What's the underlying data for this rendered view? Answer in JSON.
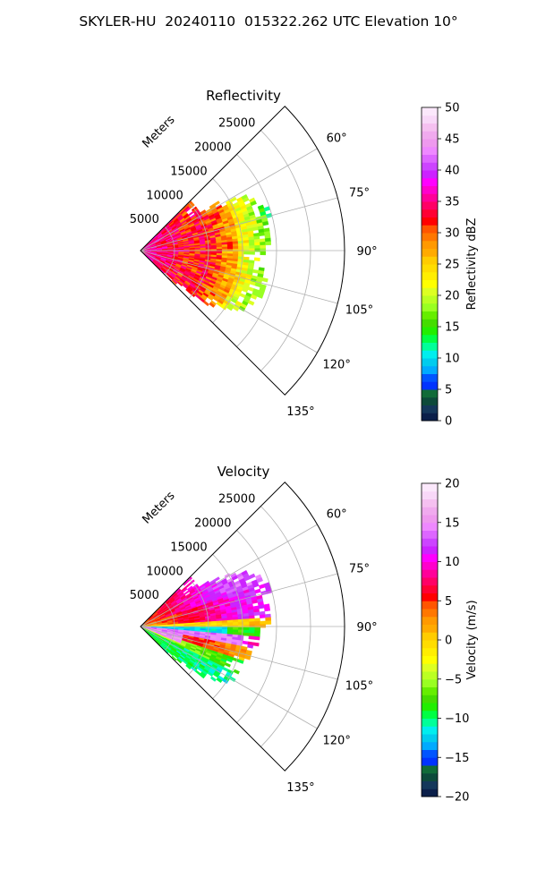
{
  "title": "SKYLER-HU  20240110  015322.262 UTC Elevation 10°",
  "chart_data": [
    {
      "type": "heatmap",
      "subtype": "polar-sector-ppi",
      "title": "Reflectivity",
      "r_axis_label": "Meters",
      "r_range": [
        0,
        30000
      ],
      "r_ticks": [
        5000,
        10000,
        15000,
        20000,
        25000
      ],
      "r_tick_labels": [
        "5000",
        "10000",
        "15000",
        "20000",
        "25000"
      ],
      "theta_range_deg": [
        45,
        135
      ],
      "theta_ticks_deg": [
        60,
        75,
        90,
        105,
        120,
        135
      ],
      "theta_tick_labels": [
        "60°",
        "75°",
        "90°",
        "105°",
        "120°",
        "135°"
      ],
      "grid": true,
      "colorbar": {
        "label": "Reflectivity dBZ",
        "range": [
          0,
          50
        ],
        "ticks": [
          0,
          5,
          10,
          15,
          20,
          25,
          30,
          35,
          40,
          45,
          50
        ],
        "tick_labels": [
          "0",
          "5",
          "10",
          "15",
          "20",
          "25",
          "30",
          "35",
          "40",
          "45",
          "50"
        ],
        "colors": [
          "#0b1f4a",
          "#14375a",
          "#0d4a3a",
          "#116b38",
          "#0033ff",
          "#0055ff",
          "#00aaff",
          "#00ccee",
          "#00eeee",
          "#00ff99",
          "#00ff44",
          "#22ee00",
          "#44dd00",
          "#66ee00",
          "#99ff22",
          "#bbff22",
          "#ddff22",
          "#ffff00",
          "#ffee00",
          "#ffdd00",
          "#ffcc00",
          "#ffaa00",
          "#ff9900",
          "#ff7700",
          "#ff5500",
          "#ff0000",
          "#ff0033",
          "#ff0066",
          "#ff0099",
          "#ff00cc",
          "#ff00ff",
          "#cc22ff",
          "#cc44ff",
          "#dd66ff",
          "#ee88ff",
          "#ee99ee",
          "#f0aaee",
          "#f5c0f0",
          "#f8d8f8",
          "#fbe8fb"
        ]
      },
      "echo_extent_m": [
        {
          "az": 55,
          "r": 10000
        },
        {
          "az": 62,
          "r": 16500
        },
        {
          "az": 68,
          "r": 19000
        },
        {
          "az": 74,
          "r": 19500
        },
        {
          "az": 80,
          "r": 19000
        },
        {
          "az": 86,
          "r": 19500
        },
        {
          "az": 92,
          "r": 17500
        },
        {
          "az": 98,
          "r": 18000
        },
        {
          "az": 104,
          "r": 19000
        },
        {
          "az": 110,
          "r": 18500
        },
        {
          "az": 116,
          "r": 18000
        },
        {
          "az": 122,
          "r": 16500
        },
        {
          "az": 128,
          "r": 13000
        },
        {
          "az": 134,
          "r": 6000
        }
      ]
    },
    {
      "type": "heatmap",
      "subtype": "polar-sector-ppi",
      "title": "Velocity",
      "r_axis_label": "Meters",
      "r_range": [
        0,
        30000
      ],
      "r_ticks": [
        5000,
        10000,
        15000,
        20000,
        25000
      ],
      "r_tick_labels": [
        "5000",
        "10000",
        "15000",
        "20000",
        "25000"
      ],
      "theta_range_deg": [
        45,
        135
      ],
      "theta_ticks_deg": [
        60,
        75,
        90,
        105,
        120,
        135
      ],
      "theta_tick_labels": [
        "60°",
        "75°",
        "90°",
        "105°",
        "120°",
        "135°"
      ],
      "grid": true,
      "colorbar": {
        "label": "Velocity (m/s)",
        "range": [
          -20,
          20
        ],
        "ticks": [
          -20,
          -15,
          -10,
          -5,
          0,
          5,
          10,
          15,
          20
        ],
        "tick_labels": [
          "−20",
          "−15",
          "−10",
          "−5",
          "0",
          "5",
          "10",
          "15",
          "20"
        ],
        "colors": [
          "#0b1f4a",
          "#14375a",
          "#0d4a3a",
          "#116b38",
          "#0033ff",
          "#0055ff",
          "#00aaff",
          "#00ccee",
          "#00eeee",
          "#00ff99",
          "#00ff44",
          "#22ee00",
          "#44dd00",
          "#66ee00",
          "#99ff22",
          "#bbff22",
          "#ddff22",
          "#ffff00",
          "#ffee00",
          "#ffdd00",
          "#ffcc00",
          "#ffaa00",
          "#ff9900",
          "#ff7700",
          "#ff5500",
          "#ff0000",
          "#ff0033",
          "#ff0066",
          "#ff0099",
          "#ff00cc",
          "#ff00ff",
          "#cc22ff",
          "#cc44ff",
          "#dd66ff",
          "#ee88ff",
          "#ee99ee",
          "#f0aaee",
          "#f5c0f0",
          "#f8d8f8",
          "#fbe8fb"
        ]
      },
      "echo_extent_m": [
        {
          "az": 55,
          "r": 10000
        },
        {
          "az": 62,
          "r": 16500
        },
        {
          "az": 68,
          "r": 19000
        },
        {
          "az": 74,
          "r": 19500
        },
        {
          "az": 80,
          "r": 19000
        },
        {
          "az": 86,
          "r": 19000
        },
        {
          "az": 92,
          "r": 17500
        },
        {
          "az": 98,
          "r": 17000
        },
        {
          "az": 104,
          "r": 16500
        },
        {
          "az": 110,
          "r": 15500
        },
        {
          "az": 116,
          "r": 16000
        },
        {
          "az": 122,
          "r": 15000
        },
        {
          "az": 128,
          "r": 12000
        },
        {
          "az": 134,
          "r": 6000
        }
      ]
    }
  ]
}
